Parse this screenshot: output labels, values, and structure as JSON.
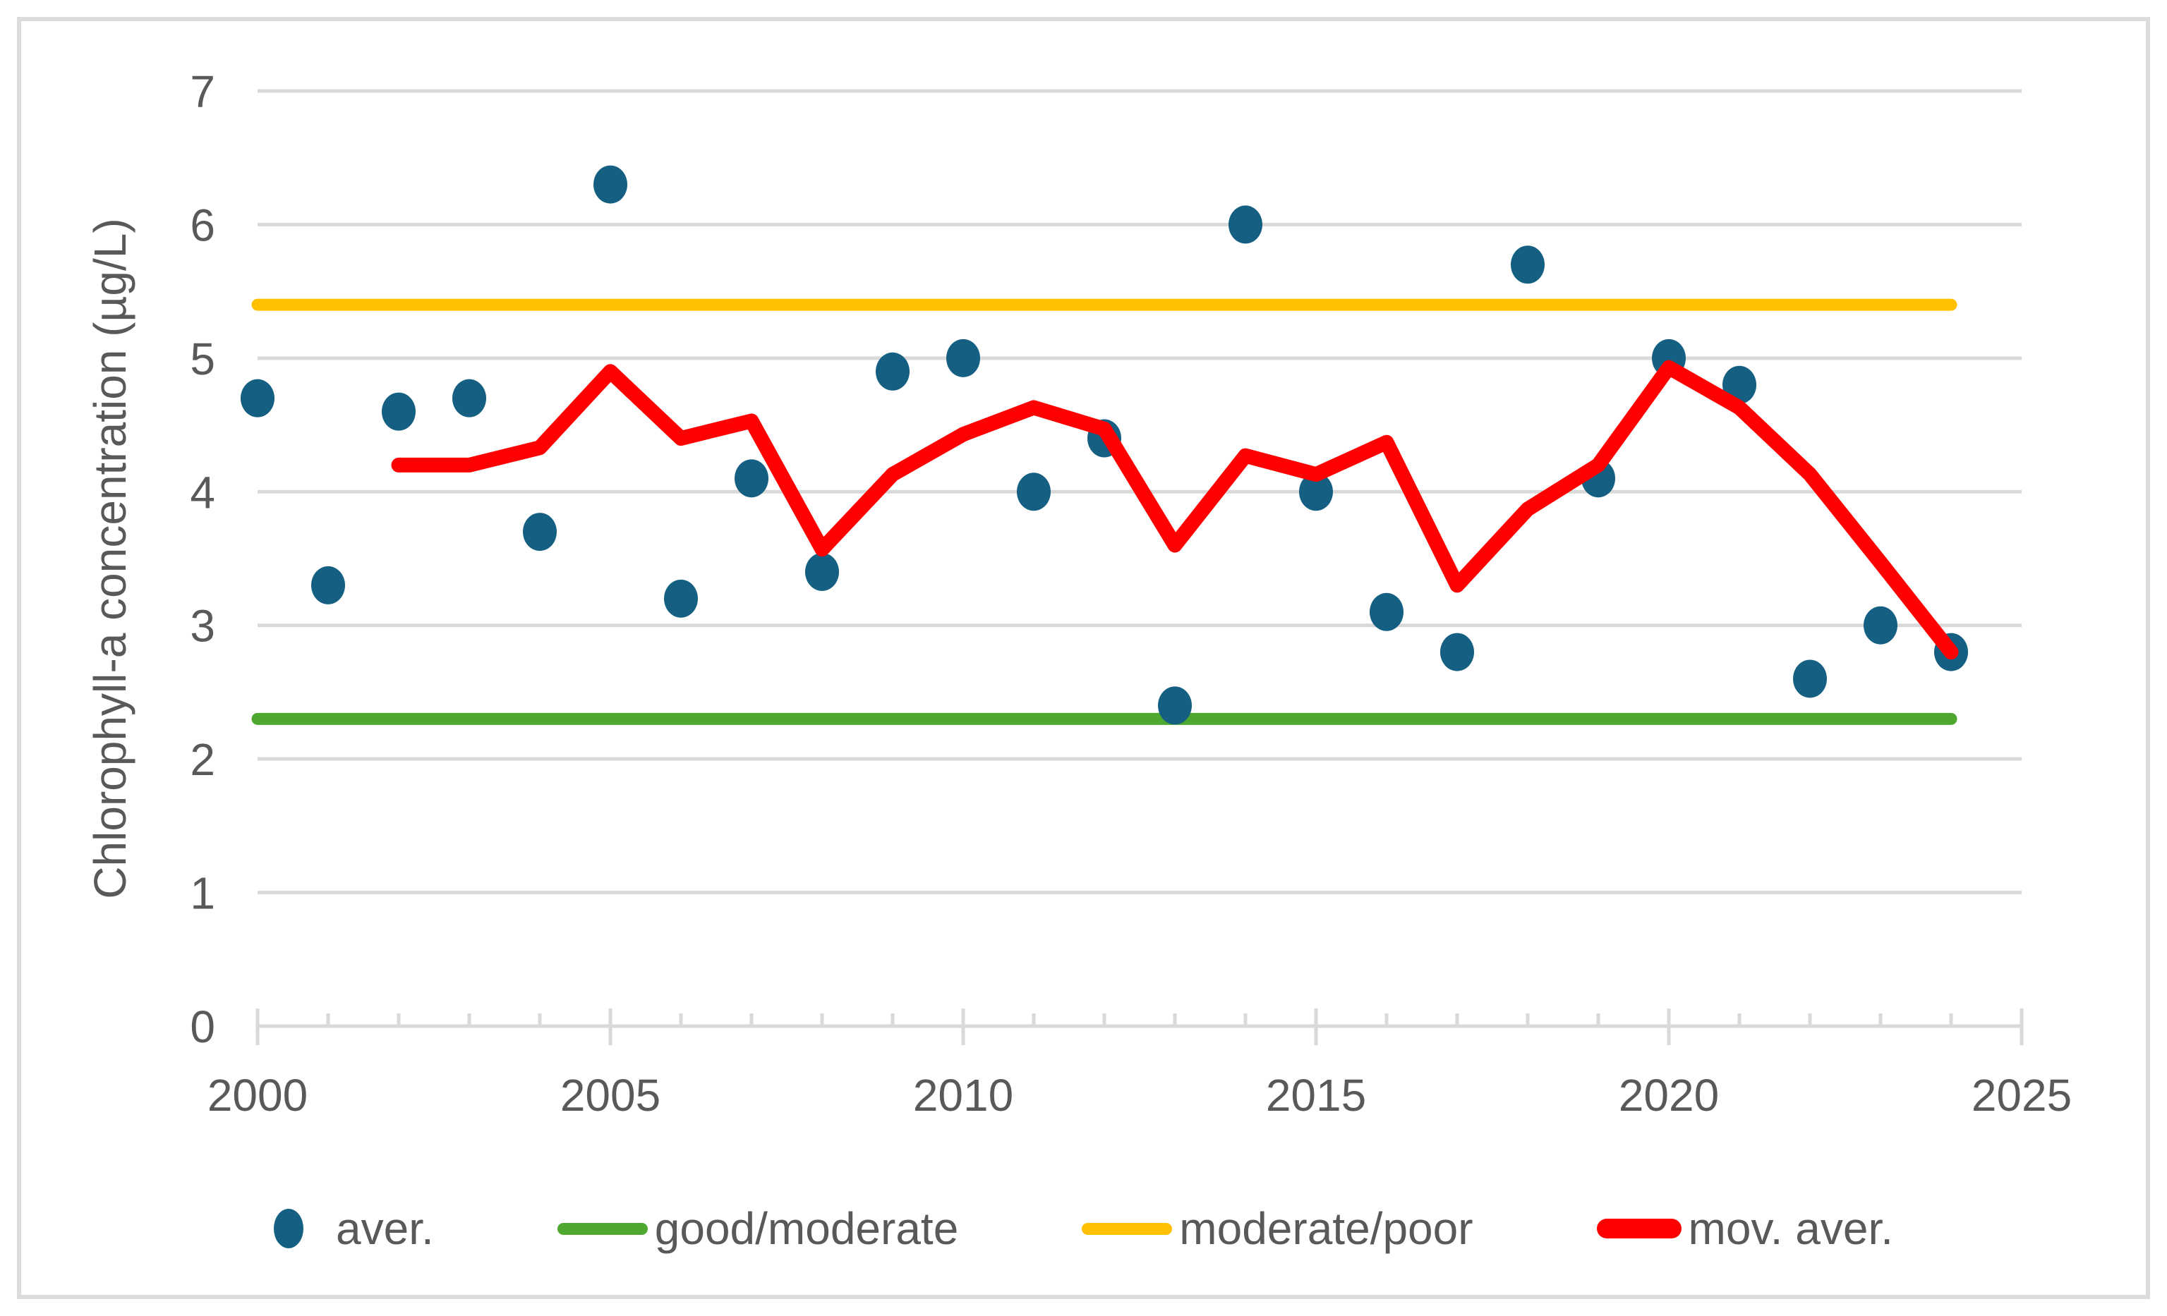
{
  "page": {
    "background_color": "#FFFFFF",
    "frame_border_color": "#DCDCDC"
  },
  "chart_data": {
    "type": "scatter",
    "title": "",
    "xlabel": "",
    "ylabel": "Chlorophyll-a concentration (µg/L)",
    "grid": true,
    "legend_position": "bottom",
    "style": {
      "gridline_color": "#D9D9D9",
      "axis_line_color": "#D9D9D9",
      "tick_color": "#D9D9D9",
      "label_color": "#595959"
    },
    "x_axis": {
      "min": 2000,
      "max": 2025,
      "major_ticks": [
        2000,
        2005,
        2010,
        2015,
        2020,
        2025
      ],
      "minor_tick_step": 1
    },
    "y_axis": {
      "min": 0,
      "max": 7,
      "ticks": [
        0,
        1,
        2,
        3,
        4,
        5,
        6,
        7
      ]
    },
    "series": [
      {
        "name": "aver.",
        "type": "scatter",
        "color": "#156082",
        "x": [
          2000,
          2001,
          2002,
          2003,
          2004,
          2005,
          2006,
          2007,
          2008,
          2009,
          2010,
          2011,
          2012,
          2013,
          2014,
          2015,
          2016,
          2017,
          2018,
          2019,
          2020,
          2021,
          2022,
          2023,
          2024
        ],
        "y": [
          4.7,
          3.3,
          4.6,
          4.7,
          3.7,
          6.3,
          3.2,
          4.1,
          3.4,
          4.9,
          5.0,
          4.0,
          4.4,
          2.4,
          6.0,
          4.0,
          3.1,
          2.8,
          5.7,
          4.1,
          5.0,
          4.8,
          2.6,
          3.0,
          2.8
        ]
      },
      {
        "name": "good/moderate",
        "type": "threshold-line",
        "color": "#4EA72E",
        "value": 2.3,
        "x_start": 2000,
        "x_end": 2024
      },
      {
        "name": "moderate/poor",
        "type": "threshold-line",
        "color": "#FFC000",
        "value": 5.4,
        "x_start": 2000,
        "x_end": 2024
      },
      {
        "name": "mov. aver.",
        "type": "line",
        "color": "#FF0000",
        "window": 3,
        "x": [
          2002,
          2003,
          2004,
          2005,
          2006,
          2007,
          2008,
          2009,
          2010,
          2011,
          2012,
          2013,
          2014,
          2015,
          2016,
          2017,
          2018,
          2019,
          2020,
          2021,
          2022,
          2023,
          2024
        ],
        "y": [
          4.2,
          4.2,
          4.33,
          4.9,
          4.4,
          4.53,
          3.57,
          4.13,
          4.43,
          4.63,
          4.47,
          3.6,
          4.27,
          4.13,
          4.37,
          3.3,
          3.87,
          4.2,
          4.93,
          4.63,
          4.13,
          3.47,
          2.8
        ]
      }
    ],
    "legend": [
      {
        "label": "aver.",
        "color": "#156082",
        "swatch": "dot"
      },
      {
        "label": "good/moderate",
        "color": "#4EA72E",
        "swatch": "line"
      },
      {
        "label": "moderate/poor",
        "color": "#FFC000",
        "swatch": "line"
      },
      {
        "label": "mov. aver.",
        "color": "#FF0000",
        "swatch": "thickline"
      }
    ]
  }
}
